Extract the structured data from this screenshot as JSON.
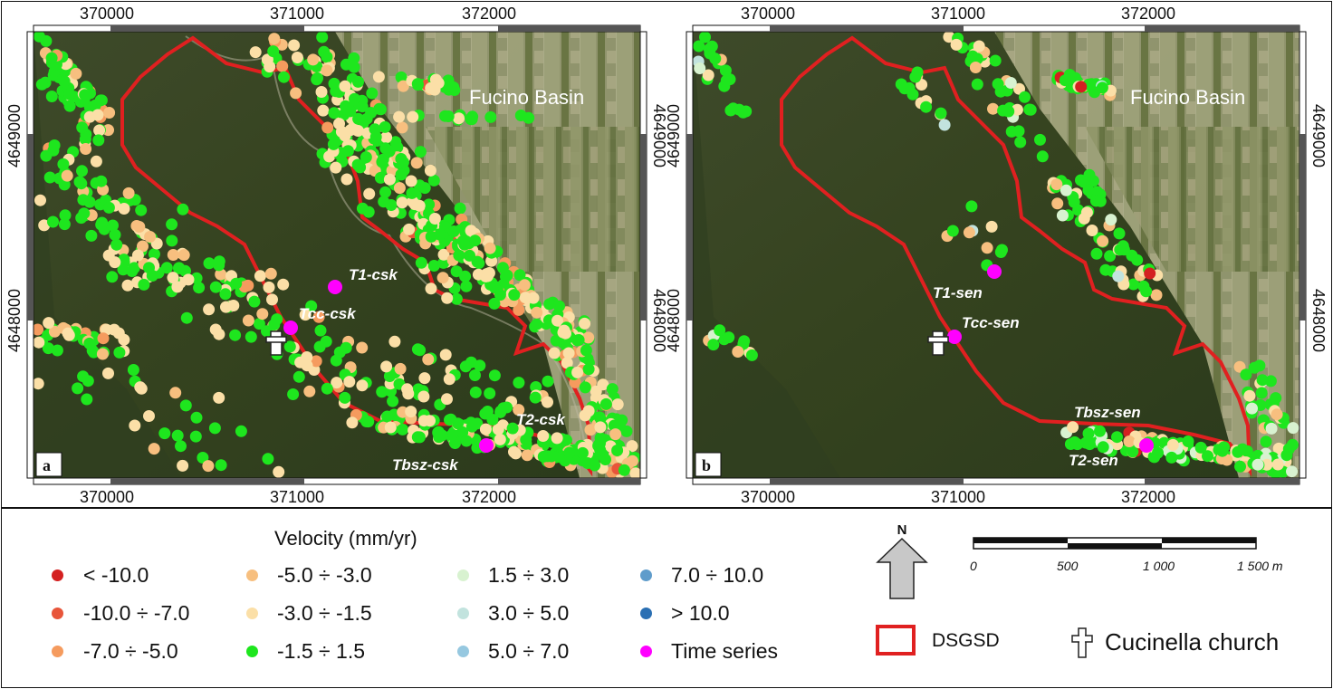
{
  "colors": {
    "lt_m10": "#d42020",
    "m10_m7": "#e8553a",
    "m7_m5": "#f59b5e",
    "m5_m3": "#f7bf7f",
    "m3_m15": "#fbdfa7",
    "m15_15": "#1ee61e",
    "p15_3": "#d8f2d0",
    "p3_5": "#c2e3de",
    "p5_7": "#96c8e0",
    "p7_10": "#5f9ccb",
    "gt_10": "#2a6fb3",
    "time_series": "#ff00ff",
    "dsgsd": "#e02020"
  },
  "panels": [
    {
      "id": "a",
      "region": "Fucino Basin",
      "labels": {
        "t1": "T1-csk",
        "tcc": "Tcc-csk",
        "t2": "T2-csk",
        "tbsz": "Tbsz-csk"
      }
    },
    {
      "id": "b",
      "region": "Fucino Basin",
      "labels": {
        "t1": "T1-sen",
        "tcc": "Tcc-sen",
        "t2": "T2-sen",
        "tbsz": "Tbsz-sen"
      }
    }
  ],
  "axes": {
    "x_ticks": [
      "370000",
      "371000",
      "372000"
    ],
    "y_ticks": [
      "4649000",
      "4648000"
    ]
  },
  "legend": {
    "title": "Velocity (mm/yr)",
    "items": [
      {
        "label": "< -10.0",
        "color_key": "lt_m10"
      },
      {
        "label": "-10.0 ÷ -7.0",
        "color_key": "m10_m7"
      },
      {
        "label": "-7.0 ÷ -5.0",
        "color_key": "m7_m5"
      },
      {
        "label": "-5.0 ÷ -3.0",
        "color_key": "m5_m3"
      },
      {
        "label": "-3.0 ÷ -1.5",
        "color_key": "m3_m15"
      },
      {
        "label": "-1.5 ÷ 1.5",
        "color_key": "m15_15"
      },
      {
        "label": "1.5 ÷ 3.0",
        "color_key": "p15_3"
      },
      {
        "label": "3.0 ÷ 5.0",
        "color_key": "p3_5"
      },
      {
        "label": "5.0 ÷ 7.0",
        "color_key": "p5_7"
      },
      {
        "label": "7.0 ÷ 10.0",
        "color_key": "p7_10"
      },
      {
        "label": "> 10.0",
        "color_key": "gt_10"
      },
      {
        "label": "Time series",
        "color_key": "time_series"
      }
    ],
    "north": "N",
    "scale_ticks": [
      "0",
      "500",
      "1 000",
      "1 500 m"
    ],
    "dsgsd": "DSGSD",
    "church": "Cucinella church",
    "church_icon": "latin-cross-icon"
  }
}
